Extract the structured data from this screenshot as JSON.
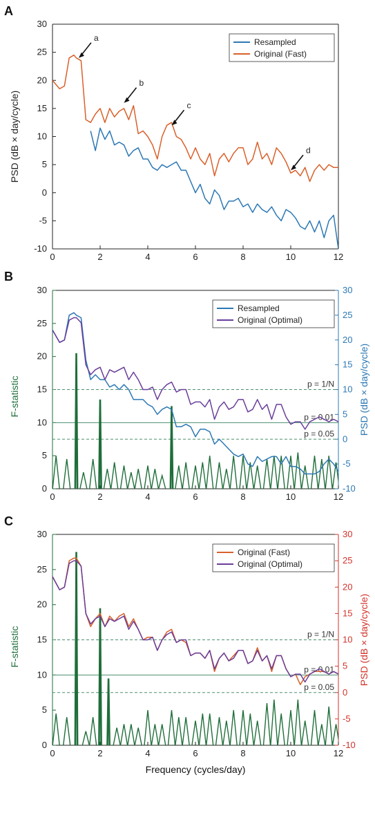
{
  "colors": {
    "resampled": "#2c78b4",
    "original_fast": "#d9602a",
    "original_optimal": "#6a3d9a",
    "fstat": "#1f6e3a",
    "fstat_axis": "#1f6e3a",
    "psd_axis_b": "#2c78b4",
    "psd_axis_c": "#d2332b",
    "threshold": "#4a8f6e"
  },
  "chart_data": [
    {
      "panel": "A",
      "type": "line",
      "xlabel": "",
      "ylabel": "PSD (dB × day/cycle)",
      "xlim": [
        0,
        12
      ],
      "ylim": [
        -10,
        30
      ],
      "xticks": [
        "0",
        "2",
        "4",
        "6",
        "8",
        "10",
        "12"
      ],
      "yticks": [
        "-10",
        "-5",
        "0",
        "5",
        "10",
        "15",
        "20",
        "25",
        "30"
      ],
      "legend": {
        "placement": "top-right",
        "entries": [
          "Resampled",
          "Original (Fast)"
        ]
      },
      "annotations": [
        {
          "label": "a",
          "x": 1.1,
          "y": 24
        },
        {
          "label": "b",
          "x": 3.0,
          "y": 16
        },
        {
          "label": "c",
          "x": 5.0,
          "y": 12
        },
        {
          "label": "d",
          "x": 10.0,
          "y": 4
        }
      ],
      "series": [
        {
          "name": "Original (Fast)",
          "x": [
            0,
            0.3,
            0.5,
            0.7,
            0.9,
            1.0,
            1.2,
            1.4,
            1.6,
            1.8,
            2.0,
            2.2,
            2.4,
            2.6,
            2.8,
            3.0,
            3.2,
            3.4,
            3.6,
            3.8,
            4.0,
            4.2,
            4.4,
            4.6,
            4.8,
            5.0,
            5.2,
            5.4,
            5.6,
            5.8,
            6.0,
            6.2,
            6.4,
            6.6,
            6.8,
            7.0,
            7.2,
            7.4,
            7.6,
            7.8,
            8.0,
            8.2,
            8.4,
            8.6,
            8.8,
            9.0,
            9.2,
            9.4,
            9.6,
            9.8,
            10.0,
            10.2,
            10.4,
            10.6,
            10.8,
            11.0,
            11.2,
            11.4,
            11.6,
            11.8,
            12.0
          ],
          "y": [
            20,
            18.5,
            19,
            24,
            24.5,
            24,
            23.5,
            13,
            12.5,
            14,
            15,
            12.5,
            15,
            13.5,
            14.5,
            15,
            13,
            15.5,
            10.5,
            11,
            10,
            8.5,
            6,
            10,
            12,
            12.5,
            10,
            9.5,
            8,
            6,
            8,
            6,
            5,
            7,
            3,
            6,
            7,
            5.5,
            7,
            8,
            8,
            5,
            6,
            9,
            6,
            7,
            5,
            8,
            7,
            5.5,
            3.5,
            4,
            3,
            4.5,
            2,
            4,
            5,
            4,
            5,
            4.5,
            4.5
          ]
        },
        {
          "name": "Resampled",
          "x": [
            1.6,
            1.8,
            2.0,
            2.2,
            2.4,
            2.6,
            2.8,
            3.0,
            3.2,
            3.4,
            3.6,
            3.8,
            4.0,
            4.2,
            4.4,
            4.6,
            4.8,
            5.0,
            5.2,
            5.4,
            5.6,
            5.8,
            6.0,
            6.2,
            6.4,
            6.6,
            6.8,
            7.0,
            7.2,
            7.4,
            7.6,
            7.8,
            8.0,
            8.2,
            8.4,
            8.6,
            8.8,
            9.0,
            9.2,
            9.4,
            9.6,
            9.8,
            10.0,
            10.2,
            10.4,
            10.6,
            10.8,
            11.0,
            11.2,
            11.4,
            11.6,
            11.8,
            12.0
          ],
          "y": [
            11,
            7.5,
            11.5,
            9.5,
            11,
            8.5,
            9,
            8.5,
            6.5,
            7.5,
            8,
            6,
            6,
            4.5,
            4,
            5,
            4.5,
            5,
            5.5,
            4,
            4,
            2,
            0,
            1.5,
            -1,
            -2,
            0.5,
            -0.5,
            -3,
            -1.5,
            -1.5,
            -1,
            -2.5,
            -2,
            -3.5,
            -2,
            -3,
            -3.5,
            -2.5,
            -4,
            -5,
            -3,
            -3.5,
            -4.5,
            -6,
            -6.5,
            -5,
            -7,
            -5,
            -8,
            -5,
            -4,
            -10
          ]
        }
      ]
    },
    {
      "panel": "B",
      "type": "line",
      "xlabel": "",
      "ylabel_left": "F-statistic",
      "ylabel_right": "PSD (dB × day/cycle)",
      "xlim": [
        0,
        12
      ],
      "ylim_left": [
        0,
        30
      ],
      "ylim_right": [
        -10,
        30
      ],
      "xticks": [
        "0",
        "2",
        "4",
        "6",
        "8",
        "10",
        "12"
      ],
      "yticks_left": [
        "0",
        "5",
        "10",
        "15",
        "20",
        "25",
        "30"
      ],
      "yticks_right": [
        "-10",
        "-5",
        "0",
        "5",
        "10",
        "15",
        "20",
        "25",
        "30"
      ],
      "legend": {
        "placement": "top-right",
        "entries": [
          "Resampled",
          "Original (Optimal)"
        ]
      },
      "thresholds": [
        {
          "label": "p = 1/N",
          "f": 15,
          "style": "dashed"
        },
        {
          "label": "p = 0.01",
          "f": 10,
          "style": "solid"
        },
        {
          "label": "p = 0.05",
          "f": 7.5,
          "style": "dashed"
        }
      ],
      "fstat_peaks": {
        "x": [
          0.15,
          0.6,
          1.0,
          1.3,
          1.7,
          2.0,
          2.3,
          2.6,
          3.0,
          3.3,
          3.6,
          4.0,
          4.3,
          4.6,
          5.0,
          5.3,
          5.6,
          6.0,
          6.3,
          6.6,
          7.0,
          7.3,
          7.6,
          8.0,
          8.3,
          8.6,
          9.0,
          9.3,
          9.6,
          10.0,
          10.3,
          10.6,
          11.0,
          11.3,
          11.6,
          11.9
        ],
        "y": [
          5,
          4.5,
          20.5,
          2.5,
          4.5,
          13.5,
          3,
          4,
          3.5,
          2.5,
          3,
          3.5,
          3,
          2,
          12.5,
          3.5,
          4,
          3.5,
          4,
          5,
          4,
          3,
          5,
          5,
          4,
          3.5,
          4.5,
          5,
          5,
          5,
          5.5,
          3.5,
          5,
          4.5,
          5,
          4
        ]
      },
      "series": [
        {
          "name": "Resampled",
          "x": [
            0,
            0.3,
            0.5,
            0.7,
            0.9,
            1.0,
            1.2,
            1.4,
            1.6,
            1.8,
            2.0,
            2.2,
            2.4,
            2.6,
            2.8,
            3.0,
            3.2,
            3.4,
            3.6,
            3.8,
            4.0,
            4.2,
            4.4,
            4.6,
            4.8,
            5.0,
            5.2,
            5.4,
            5.6,
            5.8,
            6.0,
            6.2,
            6.4,
            6.6,
            6.8,
            7.0,
            7.2,
            7.4,
            7.6,
            7.8,
            8.0,
            8.2,
            8.4,
            8.6,
            8.8,
            9.0,
            9.2,
            9.4,
            9.6,
            9.8,
            10.0,
            10.2,
            10.4,
            10.6,
            10.8,
            11.0,
            11.2,
            11.4,
            11.6,
            11.8,
            12.0
          ],
          "y": [
            22,
            19.5,
            20,
            25,
            25.5,
            25,
            24.5,
            16,
            12,
            13,
            12,
            12,
            10.5,
            11,
            10,
            11,
            10,
            8,
            8,
            8,
            7,
            6.5,
            5,
            6,
            6.5,
            6,
            2.5,
            2.5,
            3,
            2.5,
            0.5,
            2,
            2,
            1.5,
            -1,
            0,
            -1,
            -2,
            -3,
            -3.5,
            -3,
            -5,
            -5.5,
            -3.5,
            -4.5,
            -4,
            -3.5,
            -3.5,
            -5,
            -3.5,
            -5.5,
            -5.5,
            -6,
            -7,
            -7,
            -7,
            -6.5,
            -5,
            -4,
            -5,
            -6.5
          ]
        },
        {
          "name": "Original (Optimal)",
          "x": [
            0,
            0.3,
            0.5,
            0.7,
            0.9,
            1.0,
            1.2,
            1.4,
            1.6,
            1.8,
            2.0,
            2.2,
            2.4,
            2.6,
            2.8,
            3.0,
            3.2,
            3.4,
            3.6,
            3.8,
            4.0,
            4.2,
            4.4,
            4.6,
            4.8,
            5.0,
            5.2,
            5.4,
            5.6,
            5.8,
            6.0,
            6.2,
            6.4,
            6.6,
            6.8,
            7.0,
            7.2,
            7.4,
            7.6,
            7.8,
            8.0,
            8.2,
            8.4,
            8.6,
            8.8,
            9.0,
            9.2,
            9.4,
            9.6,
            9.8,
            10.0,
            10.2,
            10.4,
            10.6,
            10.8,
            11.0,
            11.2,
            11.4,
            11.6,
            11.8,
            12.0
          ],
          "y": [
            22,
            19.5,
            20,
            24,
            24.5,
            24.5,
            23.5,
            15,
            13,
            14,
            14.5,
            12,
            14,
            13.5,
            14,
            14.5,
            12,
            13.5,
            12,
            10,
            10,
            10.5,
            8,
            10,
            11,
            11.5,
            9.5,
            10,
            10,
            7,
            7.5,
            7.5,
            6.5,
            8,
            4,
            6.5,
            7.5,
            6,
            6.5,
            8,
            8,
            5.5,
            6,
            8,
            6,
            7,
            4,
            7,
            7,
            4.5,
            3,
            3.5,
            3.5,
            2,
            3.5,
            4,
            4.5,
            4,
            3.5,
            4,
            3.5
          ]
        }
      ]
    },
    {
      "panel": "C",
      "type": "line",
      "xlabel": "Frequency (cycles/day)",
      "ylabel_left": "F-statistic",
      "ylabel_right": "PSD (dB × day/cycle)",
      "xlim": [
        0,
        12
      ],
      "ylim_left": [
        0,
        30
      ],
      "ylim_right": [
        -10,
        30
      ],
      "xticks": [
        "0",
        "2",
        "4",
        "6",
        "8",
        "10",
        "12"
      ],
      "yticks_left": [
        "0",
        "5",
        "10",
        "15",
        "20",
        "25",
        "30"
      ],
      "yticks_right": [
        "-10",
        "-5",
        "0",
        "5",
        "10",
        "15",
        "20",
        "25",
        "30"
      ],
      "legend": {
        "placement": "top-right",
        "entries": [
          "Original (Fast)",
          "Original (Optimal)"
        ]
      },
      "thresholds": [
        {
          "label": "p = 1/N",
          "f": 15,
          "style": "dashed"
        },
        {
          "label": "p = 0.01",
          "f": 10,
          "style": "solid"
        },
        {
          "label": "p = 0.05",
          "f": 7.5,
          "style": "dashed"
        }
      ],
      "fstat_peaks": {
        "x": [
          0.15,
          0.6,
          1.0,
          1.4,
          1.7,
          2.0,
          2.35,
          2.7,
          3.0,
          3.3,
          3.6,
          4.0,
          4.3,
          4.6,
          5.0,
          5.3,
          5.6,
          6.0,
          6.3,
          6.6,
          7.0,
          7.3,
          7.6,
          8.0,
          8.3,
          8.6,
          9.0,
          9.3,
          9.6,
          10.0,
          10.3,
          10.6,
          11.0,
          11.3,
          11.6,
          11.9
        ],
        "y": [
          4.5,
          4,
          27.5,
          2,
          4,
          19.5,
          9.5,
          2.5,
          3,
          3,
          2.5,
          5,
          3,
          3,
          5,
          4,
          4,
          3.5,
          4.5,
          4.5,
          4,
          3.5,
          5,
          5,
          4.5,
          3.5,
          6,
          6.5,
          4.5,
          5,
          6.5,
          3.5,
          5,
          3,
          5.5,
          3
        ]
      },
      "series": [
        {
          "name": "Original (Fast)",
          "x": [
            0,
            0.3,
            0.5,
            0.7,
            0.9,
            1.0,
            1.2,
            1.4,
            1.6,
            1.8,
            2.0,
            2.2,
            2.4,
            2.6,
            2.8,
            3.0,
            3.2,
            3.4,
            3.6,
            3.8,
            4.0,
            4.2,
            4.4,
            4.6,
            4.8,
            5.0,
            5.2,
            5.4,
            5.6,
            5.8,
            6.0,
            6.2,
            6.4,
            6.6,
            6.8,
            7.0,
            7.2,
            7.4,
            7.6,
            7.8,
            8.0,
            8.2,
            8.4,
            8.6,
            8.8,
            9.0,
            9.2,
            9.4,
            9.6,
            9.8,
            10.0,
            10.2,
            10.4,
            10.6,
            10.8,
            11.0,
            11.2,
            11.4,
            11.6,
            11.8,
            12.0
          ],
          "y": [
            22,
            19.5,
            20,
            25,
            25.5,
            25.5,
            24,
            15,
            12.5,
            14,
            15,
            12.5,
            14.5,
            13.5,
            14.5,
            15,
            12.5,
            14,
            12,
            10,
            10.5,
            10.5,
            8,
            10,
            11.5,
            12,
            9.5,
            10,
            9.5,
            7,
            7.5,
            7.5,
            6.5,
            8,
            4,
            6.5,
            7.5,
            6,
            7,
            8,
            8,
            5.5,
            6,
            8.5,
            6,
            7,
            4,
            7,
            7,
            4.5,
            3,
            3.5,
            1.5,
            3,
            3.5,
            4,
            4,
            4,
            3.5,
            4,
            3.5
          ]
        },
        {
          "name": "Original (Optimal)",
          "x": [
            0,
            0.3,
            0.5,
            0.7,
            0.9,
            1.0,
            1.2,
            1.4,
            1.6,
            1.8,
            2.0,
            2.2,
            2.4,
            2.6,
            2.8,
            3.0,
            3.2,
            3.4,
            3.6,
            3.8,
            4.0,
            4.2,
            4.4,
            4.6,
            4.8,
            5.0,
            5.2,
            5.4,
            5.6,
            5.8,
            6.0,
            6.2,
            6.4,
            6.6,
            6.8,
            7.0,
            7.2,
            7.4,
            7.6,
            7.8,
            8.0,
            8.2,
            8.4,
            8.6,
            8.8,
            9.0,
            9.2,
            9.4,
            9.6,
            9.8,
            10.0,
            10.2,
            10.4,
            10.6,
            10.8,
            11.0,
            11.2,
            11.4,
            11.6,
            11.8,
            12.0
          ],
          "y": [
            22,
            19.5,
            20,
            24.5,
            25,
            25,
            24,
            15,
            13,
            14,
            14.5,
            12.5,
            14,
            13.5,
            14,
            14.5,
            12,
            13.5,
            12,
            10,
            10,
            10.5,
            8,
            10,
            11,
            11.5,
            9.5,
            10,
            10,
            7,
            7.5,
            7.5,
            6.5,
            8,
            4.5,
            6.5,
            7.5,
            6,
            6.5,
            8,
            8,
            5.5,
            6,
            8,
            6,
            7,
            4.5,
            7,
            7,
            4.5,
            3,
            3.5,
            3.5,
            2,
            3.5,
            4,
            4.5,
            4,
            3.5,
            4,
            3.5
          ]
        }
      ]
    }
  ]
}
